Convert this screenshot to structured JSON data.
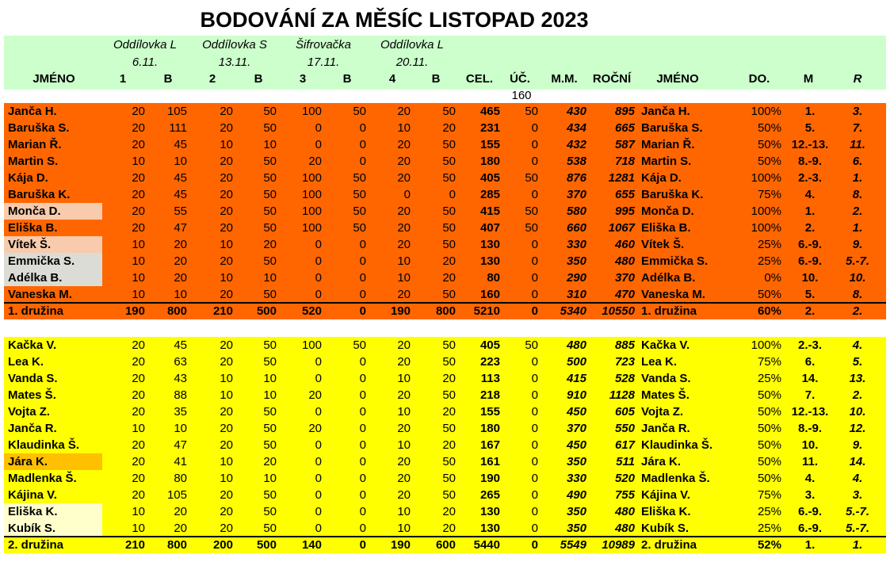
{
  "title": "BODOVÁNÍ ZA MĚSÍC LISTOPAD 2023",
  "events": [
    {
      "name": "Oddílovka L",
      "date": "6.11."
    },
    {
      "name": "Oddílovka S",
      "date": "13.11."
    },
    {
      "name": "Šifrovačka",
      "date": "17.11."
    },
    {
      "name": "Oddílovka L",
      "date": "20.11."
    }
  ],
  "columns": [
    "JMÉNO",
    "1",
    "B",
    "2",
    "B",
    "3",
    "B",
    "4",
    "B",
    "CEL.",
    "ÚČ.",
    "M.M.",
    "ROČNÍ",
    "JMÉNO",
    "DO.",
    "M",
    "R"
  ],
  "uc_max": 160,
  "sections": [
    {
      "color": "#ff6600",
      "rows": [
        {
          "cells": [
            "Janča H.",
            20,
            105,
            20,
            50,
            100,
            50,
            20,
            50,
            465,
            50,
            430,
            895,
            "Janča H.",
            "100%",
            "1.",
            "3."
          ]
        },
        {
          "cells": [
            "Baruška S.",
            20,
            111,
            20,
            50,
            0,
            0,
            10,
            20,
            231,
            0,
            434,
            665,
            "Baruška S.",
            "50%",
            "5.",
            "7."
          ]
        },
        {
          "cells": [
            "Marian Ř.",
            20,
            45,
            10,
            10,
            0,
            0,
            20,
            50,
            155,
            0,
            432,
            587,
            "Marian Ř.",
            "50%",
            "12.-13.",
            "11."
          ]
        },
        {
          "cells": [
            "Martin S.",
            10,
            10,
            20,
            50,
            20,
            0,
            20,
            50,
            180,
            0,
            538,
            718,
            "Martin S.",
            "50%",
            "8.-9.",
            "6."
          ]
        },
        {
          "cells": [
            "Kája D.",
            20,
            45,
            20,
            50,
            100,
            50,
            20,
            50,
            405,
            50,
            876,
            1281,
            "Kája D.",
            "100%",
            "2.-3.",
            "1."
          ]
        },
        {
          "cells": [
            "Baruška K.",
            20,
            45,
            20,
            50,
            100,
            50,
            0,
            0,
            285,
            0,
            370,
            655,
            "Baruška K.",
            "75%",
            "4.",
            "8."
          ]
        },
        {
          "cells": [
            "Monča D.",
            20,
            55,
            20,
            50,
            100,
            50,
            20,
            50,
            415,
            50,
            580,
            995,
            "Monča D.",
            "100%",
            "1.",
            "2."
          ],
          "name_color": "#f8cbad"
        },
        {
          "cells": [
            "Eliška B.",
            20,
            47,
            20,
            50,
            100,
            50,
            20,
            50,
            407,
            50,
            660,
            1067,
            "Eliška B.",
            "100%",
            "2.",
            "1."
          ]
        },
        {
          "cells": [
            "Vítek Š.",
            10,
            20,
            10,
            20,
            0,
            0,
            20,
            50,
            130,
            0,
            330,
            460,
            "Vítek Š.",
            "25%",
            "6.-9.",
            "9."
          ],
          "name_color": "#f8cbad"
        },
        {
          "cells": [
            "Emmička S.",
            10,
            20,
            20,
            50,
            0,
            0,
            10,
            20,
            130,
            0,
            350,
            480,
            "Emmička S.",
            "25%",
            "6.-9.",
            "5.-7."
          ],
          "name_color": "#dcdcd6"
        },
        {
          "cells": [
            "Adélka B.",
            10,
            20,
            10,
            10,
            0,
            0,
            10,
            20,
            80,
            0,
            290,
            370,
            "Adélka B.",
            "0%",
            "10.",
            "10."
          ],
          "name_color": "#dcdcd6"
        },
        {
          "cells": [
            "Vaneska M.",
            10,
            10,
            20,
            50,
            0,
            0,
            20,
            50,
            160,
            0,
            310,
            470,
            "Vaneska M.",
            "50%",
            "5.",
            "8."
          ]
        }
      ],
      "total": [
        "1. družina",
        190,
        800,
        210,
        500,
        520,
        0,
        190,
        800,
        5210,
        0,
        5340,
        10550,
        "1. družina",
        "60%",
        "2.",
        "2."
      ]
    },
    {
      "color": "#ffff00",
      "rows": [
        {
          "cells": [
            "Kačka V.",
            20,
            45,
            20,
            50,
            100,
            50,
            20,
            50,
            405,
            50,
            480,
            885,
            "Kačka V.",
            "100%",
            "2.-3.",
            "4."
          ]
        },
        {
          "cells": [
            "Lea K.",
            20,
            63,
            20,
            50,
            0,
            0,
            20,
            50,
            223,
            0,
            500,
            723,
            "Lea K.",
            "75%",
            "6.",
            "5."
          ]
        },
        {
          "cells": [
            "Vanda S.",
            20,
            43,
            10,
            10,
            0,
            0,
            10,
            20,
            113,
            0,
            415,
            528,
            "Vanda S.",
            "25%",
            "14.",
            "13."
          ]
        },
        {
          "cells": [
            "Mates Š.",
            20,
            88,
            10,
            10,
            20,
            0,
            20,
            50,
            218,
            0,
            910,
            1128,
            "Mates Š.",
            "50%",
            "7.",
            "2."
          ]
        },
        {
          "cells": [
            "Vojta Z.",
            20,
            35,
            20,
            50,
            0,
            0,
            10,
            20,
            155,
            0,
            450,
            605,
            "Vojta Z.",
            "50%",
            "12.-13.",
            "10."
          ]
        },
        {
          "cells": [
            "Janča R.",
            10,
            10,
            20,
            50,
            20,
            0,
            20,
            50,
            180,
            0,
            370,
            550,
            "Janča R.",
            "50%",
            "8.-9.",
            "12."
          ]
        },
        {
          "cells": [
            "Klaudinka Š.",
            20,
            47,
            20,
            50,
            0,
            0,
            10,
            20,
            167,
            0,
            450,
            617,
            "Klaudinka Š.",
            "50%",
            "10.",
            "9."
          ]
        },
        {
          "cells": [
            "Jára K.",
            20,
            41,
            10,
            20,
            0,
            0,
            20,
            50,
            161,
            0,
            350,
            511,
            "Jára K.",
            "50%",
            "11.",
            "14."
          ],
          "name_color": "#ffc000"
        },
        {
          "cells": [
            "Madlenka Š.",
            20,
            80,
            10,
            10,
            0,
            0,
            20,
            50,
            190,
            0,
            330,
            520,
            "Madlenka Š.",
            "50%",
            "4.",
            "4."
          ]
        },
        {
          "cells": [
            "Kájina V.",
            20,
            105,
            20,
            50,
            0,
            0,
            20,
            50,
            265,
            0,
            490,
            755,
            "Kájina V.",
            "75%",
            "3.",
            "3."
          ]
        },
        {
          "cells": [
            "Eliška K.",
            10,
            20,
            20,
            50,
            0,
            0,
            10,
            20,
            130,
            0,
            350,
            480,
            "Eliška K.",
            "25%",
            "6.-9.",
            "5.-7."
          ],
          "name_color": "#ffffcc"
        },
        {
          "cells": [
            "Kubík S.",
            10,
            20,
            20,
            50,
            0,
            0,
            10,
            20,
            130,
            0,
            350,
            480,
            "Kubík S.",
            "25%",
            "6.-9.",
            "5.-7."
          ],
          "name_color": "#ffffcc"
        }
      ],
      "total": [
        "2. družina",
        210,
        800,
        200,
        500,
        140,
        0,
        190,
        600,
        5440,
        0,
        5549,
        10989,
        "2. družina",
        "52%",
        "1.",
        "1."
      ]
    }
  ]
}
